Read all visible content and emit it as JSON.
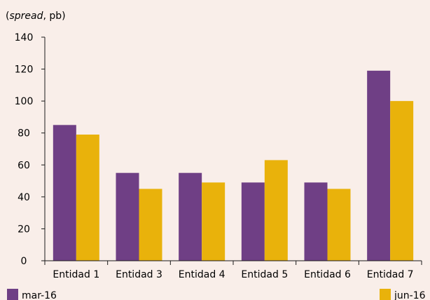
{
  "chart_data": {
    "type": "bar",
    "ylabel": "(spread, pb)",
    "ylabel_italic": "spread",
    "ylabel_before": "(",
    "ylabel_after": ", pb)",
    "categories": [
      "Entidad 1",
      "Entidad 3",
      "Entidad 4",
      "Entidad 5",
      "Entidad 6",
      "Entidad 7"
    ],
    "series": [
      {
        "name": "mar-16",
        "color": "#6f3f85",
        "values": [
          85,
          55,
          55,
          49,
          49,
          119
        ]
      },
      {
        "name": "jun-16",
        "color": "#e9b20b",
        "values": [
          79,
          45,
          49,
          63,
          45,
          100
        ]
      }
    ],
    "ylim": [
      0,
      140
    ],
    "yticks": [
      0,
      20,
      40,
      60,
      80,
      100,
      120,
      140
    ],
    "grid": false,
    "legend_position": "bottom"
  }
}
